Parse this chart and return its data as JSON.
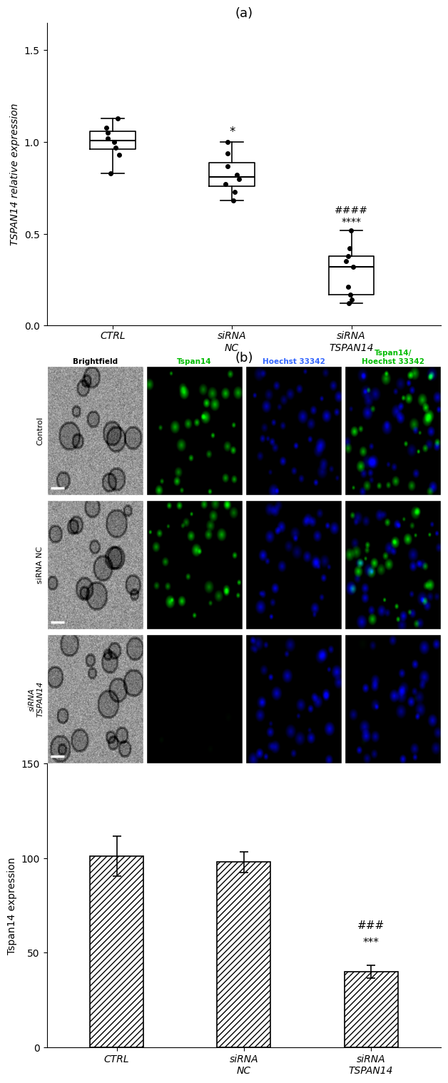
{
  "panel_a_title": "(a)",
  "panel_b_title": "(b)",
  "boxplot": {
    "ylabel": "TSPAN14 relative expression",
    "ylim": [
      0,
      1.65
    ],
    "yticks": [
      0.0,
      0.5,
      1.0,
      1.5
    ],
    "categories": [
      "CTRL",
      "siRNA\nNC",
      "siRNA\nTSPAN14"
    ],
    "ctrl_data": [
      0.83,
      0.93,
      0.97,
      1.0,
      1.02,
      1.05,
      1.08,
      1.13
    ],
    "sirna_nc_data": [
      0.68,
      0.73,
      0.77,
      0.8,
      0.82,
      0.87,
      0.94,
      1.0
    ],
    "sirna_tspan14_data": [
      0.12,
      0.14,
      0.17,
      0.21,
      0.32,
      0.35,
      0.38,
      0.42,
      0.52
    ],
    "annotation_nc": "*",
    "annotation_tspan14_hash": "####",
    "annotation_tspan14_star": "****"
  },
  "microscopy": {
    "col_headers": [
      "Brightfield",
      "Tspan14",
      "Hoechst 33342",
      "Tspan14/\nHoechst 33342"
    ],
    "row_labels": [
      "Control",
      "siRNA NC",
      "siRNA\nTSPAN14"
    ],
    "col_header_colors": [
      "#000000",
      "#00cc00",
      "#3366ff",
      "#00cc00"
    ],
    "row_label_italic": [
      false,
      false,
      true
    ]
  },
  "barchart": {
    "ylabel": "Tspan14 expression",
    "ylim": [
      0,
      150
    ],
    "yticks": [
      0,
      50,
      100,
      150
    ],
    "categories": [
      "CTRL",
      "siRNA\nNC",
      "siRNA\nTSPAN14"
    ],
    "values": [
      101.0,
      98.0,
      40.0
    ],
    "errors": [
      10.5,
      5.5,
      3.5
    ],
    "annotation_tspan14_hash": "###",
    "annotation_tspan14_star": "***"
  }
}
